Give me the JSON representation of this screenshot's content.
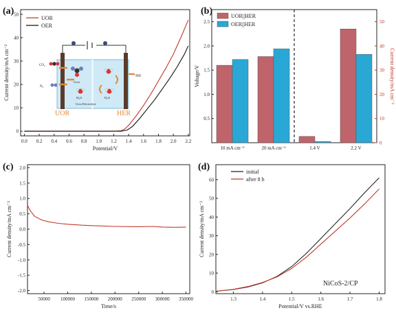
{
  "chart_data": [
    {
      "panel": "(a)",
      "type": "line",
      "xlabel": "Potential/V",
      "ylabel": "Current density/mA cm⁻²",
      "xlim": [
        -0.05,
        2.22
      ],
      "ylim": [
        -2,
        52
      ],
      "xticks": [
        0.0,
        0.2,
        0.4,
        0.6,
        0.8,
        1.0,
        1.2,
        1.4,
        1.6,
        1.8,
        2.0,
        2.2
      ],
      "yticks": [
        0,
        10,
        20,
        30,
        40,
        50
      ],
      "legend": "top-left",
      "series": [
        {
          "name": "UOR",
          "color": "#c0392b",
          "x": [
            0.0,
            0.4,
            0.8,
            1.2,
            1.3,
            1.35,
            1.4,
            1.5,
            1.6,
            1.7,
            1.8,
            1.9,
            2.0,
            2.1,
            2.2
          ],
          "y": [
            0,
            0,
            0,
            0,
            0.2,
            1.0,
            2.5,
            6.5,
            11,
            16,
            21.5,
            27,
            33,
            40,
            47.5
          ]
        },
        {
          "name": "OER",
          "color": "#111111",
          "x": [
            0.0,
            0.4,
            0.8,
            1.2,
            1.3,
            1.38,
            1.45,
            1.55,
            1.65,
            1.75,
            1.85,
            1.95,
            2.05,
            2.15,
            2.2
          ],
          "y": [
            0,
            0,
            0,
            0,
            0,
            0.5,
            2,
            5.5,
            9.5,
            13.5,
            18,
            22.5,
            27.5,
            33,
            36.5
          ]
        }
      ],
      "inset": {
        "labels": {
          "left_electrode": "UOR",
          "right_electrode": "HER",
          "electrolyte": "Urea Electrolyte",
          "co2": "CO₂",
          "n2": "N₂",
          "h2o_1": "H₂O",
          "h2o_2": "H₂O",
          "urea": "Urea"
        }
      }
    },
    {
      "panel": "(b)",
      "type": "bar",
      "ylabel": "Voltage/V",
      "ylabel_right": "Current density/mA cm⁻²",
      "categories": [
        "10 mA cm⁻²",
        "20 mA cm⁻²",
        "1.4 V",
        "2.2 V"
      ],
      "ylim": [
        0.0,
        2.75
      ],
      "yticks": [
        0.5,
        1.0,
        1.5,
        2.0,
        2.5
      ],
      "ylim_right": [
        0,
        55
      ],
      "yticks_right": [
        0,
        10,
        20,
        30,
        40,
        50
      ],
      "legend": "top-left",
      "divider_after_category": 1,
      "series": [
        {
          "name": "UOR||HER",
          "color": "#c0646c",
          "axis": [
            "left",
            "left",
            "right",
            "right"
          ],
          "values": [
            1.6,
            1.78,
            2.6,
            47
          ]
        },
        {
          "name": "OER||HER",
          "color": "#29a8d6",
          "axis": [
            "left",
            "left",
            "right",
            "right"
          ],
          "values": [
            1.72,
            1.94,
            0.5,
            36.5
          ]
        }
      ]
    },
    {
      "panel": "(c)",
      "type": "line",
      "xlabel": "Time/s",
      "ylabel": "Current density/mA cm⁻²",
      "xlim": [
        15000,
        358000
      ],
      "ylim": [
        -2.1,
        2.1
      ],
      "xticks": [
        50000,
        100000,
        150000,
        200000,
        250000,
        300000,
        350000
      ],
      "yticks": [
        -2.0,
        -1.5,
        -1.0,
        -0.5,
        0.0,
        0.5,
        1.0,
        1.5,
        2.0
      ],
      "series": [
        {
          "color": "#c0392b",
          "x": [
            15000,
            20000,
            30000,
            45000,
            60000,
            80000,
            100000,
            130000,
            160000,
            200000,
            250000,
            280000,
            300000,
            330000,
            350000
          ],
          "y": [
            0.78,
            0.62,
            0.42,
            0.3,
            0.24,
            0.19,
            0.16,
            0.13,
            0.11,
            0.09,
            0.08,
            0.09,
            0.07,
            0.06,
            0.07
          ]
        }
      ]
    },
    {
      "panel": "(d)",
      "type": "line",
      "xlabel": "Potential/V vs.RHE",
      "ylabel": "Current density/mA cm⁻²",
      "xlim": [
        1.24,
        1.82
      ],
      "ylim": [
        -1,
        68
      ],
      "xticks": [
        1.3,
        1.4,
        1.5,
        1.6,
        1.7,
        1.8
      ],
      "yticks": [
        0,
        10,
        20,
        30,
        40,
        50,
        60
      ],
      "legend": "top-left",
      "annotation": "NiCoS-2/CP",
      "series": [
        {
          "name": "initial",
          "color": "#222222",
          "x": [
            1.24,
            1.3,
            1.35,
            1.4,
            1.45,
            1.5,
            1.55,
            1.6,
            1.65,
            1.7,
            1.75,
            1.8
          ],
          "y": [
            0.3,
            1.2,
            2.6,
            4.8,
            8.3,
            13.5,
            20.5,
            28.5,
            36.5,
            44.5,
            53,
            61
          ]
        },
        {
          "name": "after 8 h",
          "color": "#c0392b",
          "x": [
            1.24,
            1.3,
            1.35,
            1.4,
            1.45,
            1.5,
            1.55,
            1.6,
            1.65,
            1.7,
            1.75,
            1.8
          ],
          "y": [
            0.3,
            1.3,
            2.8,
            5.0,
            8.0,
            12.5,
            18.5,
            25.5,
            32.5,
            39.5,
            47,
            55
          ]
        }
      ]
    }
  ]
}
